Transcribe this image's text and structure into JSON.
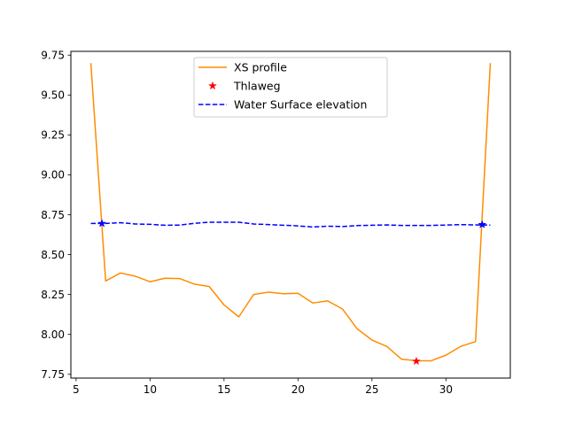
{
  "chart_data": {
    "type": "line",
    "title": "",
    "xlabel": "",
    "ylabel": "",
    "xlim": [
      4.65,
      34.35
    ],
    "ylim": [
      7.7265,
      9.7735
    ],
    "grid": false,
    "legend_position": "upper center",
    "x_ticks": [
      5,
      10,
      15,
      20,
      25,
      30
    ],
    "x_tick_labels": [
      "5",
      "10",
      "15",
      "20",
      "25",
      "30"
    ],
    "y_ticks": [
      7.75,
      8.0,
      8.25,
      8.5,
      8.75,
      9.0,
      9.25,
      9.5,
      9.75
    ],
    "y_tick_labels": [
      "7.75",
      "8.00",
      "8.25",
      "8.50",
      "8.75",
      "9.00",
      "9.25",
      "9.50",
      "9.75"
    ],
    "series": [
      {
        "name": "XS profile",
        "style": "solid",
        "color": "#ff8c00",
        "x": [
          6,
          7,
          8,
          9,
          10,
          11,
          12,
          13,
          14,
          15,
          16,
          17,
          18,
          19,
          20,
          21,
          22,
          23,
          24,
          25,
          26,
          27,
          28,
          29,
          30,
          31,
          32,
          33
        ],
        "y": [
          9.7,
          8.335,
          8.385,
          8.365,
          8.33,
          8.352,
          8.35,
          8.315,
          8.3,
          8.185,
          8.11,
          8.25,
          8.265,
          8.255,
          8.258,
          8.197,
          8.21,
          8.16,
          8.035,
          7.965,
          7.925,
          7.845,
          7.835,
          7.835,
          7.87,
          7.925,
          7.955,
          9.7
        ]
      },
      {
        "name": "Thlaweg",
        "style": "marker",
        "marker": "star",
        "color": "#ff0000",
        "x": [
          28
        ],
        "y": [
          7.832
        ]
      },
      {
        "name": "Water Surface elevation",
        "style": "dashed",
        "color": "#0000ff",
        "x": [
          6,
          7,
          8,
          9,
          10,
          11,
          12,
          13,
          14,
          15,
          16,
          17,
          18,
          19,
          20,
          21,
          22,
          23,
          24,
          25,
          26,
          27,
          28,
          29,
          30,
          31,
          32,
          33
        ],
        "y": [
          8.695,
          8.695,
          8.7,
          8.692,
          8.69,
          8.684,
          8.685,
          8.696,
          8.703,
          8.703,
          8.703,
          8.692,
          8.688,
          8.684,
          8.68,
          8.673,
          8.678,
          8.676,
          8.682,
          8.684,
          8.686,
          8.683,
          8.683,
          8.683,
          8.685,
          8.688,
          8.686,
          8.685
        ],
        "end_markers": [
          {
            "x": 6.75,
            "y": 8.695
          },
          {
            "x": 32.45,
            "y": 8.688
          }
        ]
      }
    ]
  }
}
